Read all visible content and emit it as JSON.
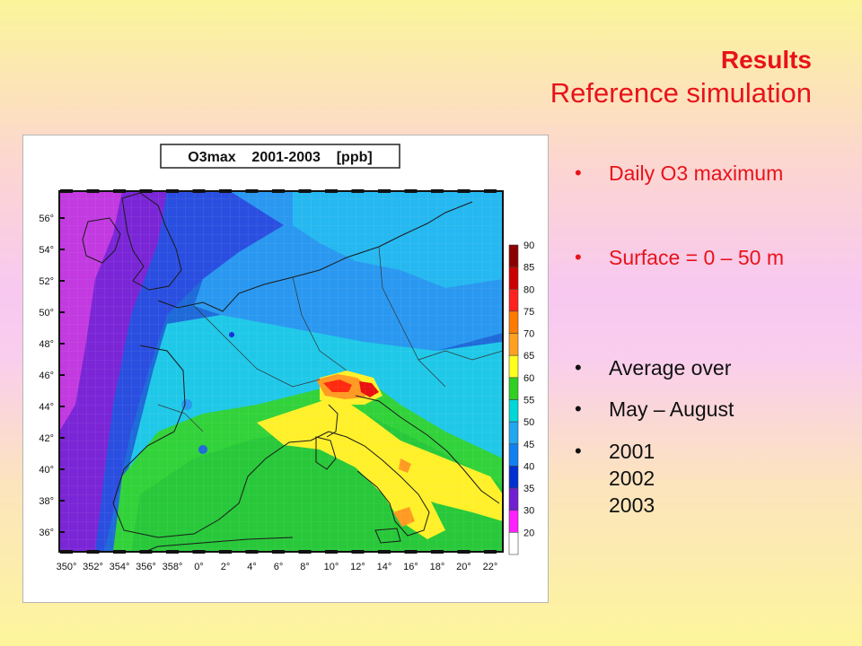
{
  "title": {
    "main": "Results",
    "sub": "Reference simulation"
  },
  "map": {
    "header": "O3max    2001-2003    [ppb]",
    "lat_labels": [
      "56°",
      "54°",
      "52°",
      "50°",
      "48°",
      "46°",
      "44°",
      "42°",
      "40°",
      "38°",
      "36°"
    ],
    "lon_labels": [
      "350°",
      "352°",
      "354°",
      "356°",
      "358°",
      "0°",
      "2°",
      "4°",
      "6°",
      "8°",
      "10°",
      "12°",
      "14°",
      "16°",
      "18°",
      "20°",
      "22°"
    ],
    "colorbar": {
      "labels": [
        "90",
        "85",
        "80",
        "75",
        "70",
        "65",
        "60",
        "55",
        "50",
        "45",
        "40",
        "35",
        "30",
        "20"
      ],
      "colors": [
        "#8b0000",
        "#cc0000",
        "#ff2020",
        "#ff7a00",
        "#ffa020",
        "#ffff20",
        "#30d020",
        "#00d8d8",
        "#20a8f0",
        "#1080f0",
        "#0030d0",
        "#7020d0",
        "#ff20ff",
        "#ffffff"
      ]
    }
  },
  "bullets": {
    "b1": "Daily O3 maximum",
    "b2": "Surface = 0 – 50 m",
    "b3": "Average over",
    "b4": "May – August",
    "years": [
      "2001",
      "2002",
      "2003"
    ]
  }
}
